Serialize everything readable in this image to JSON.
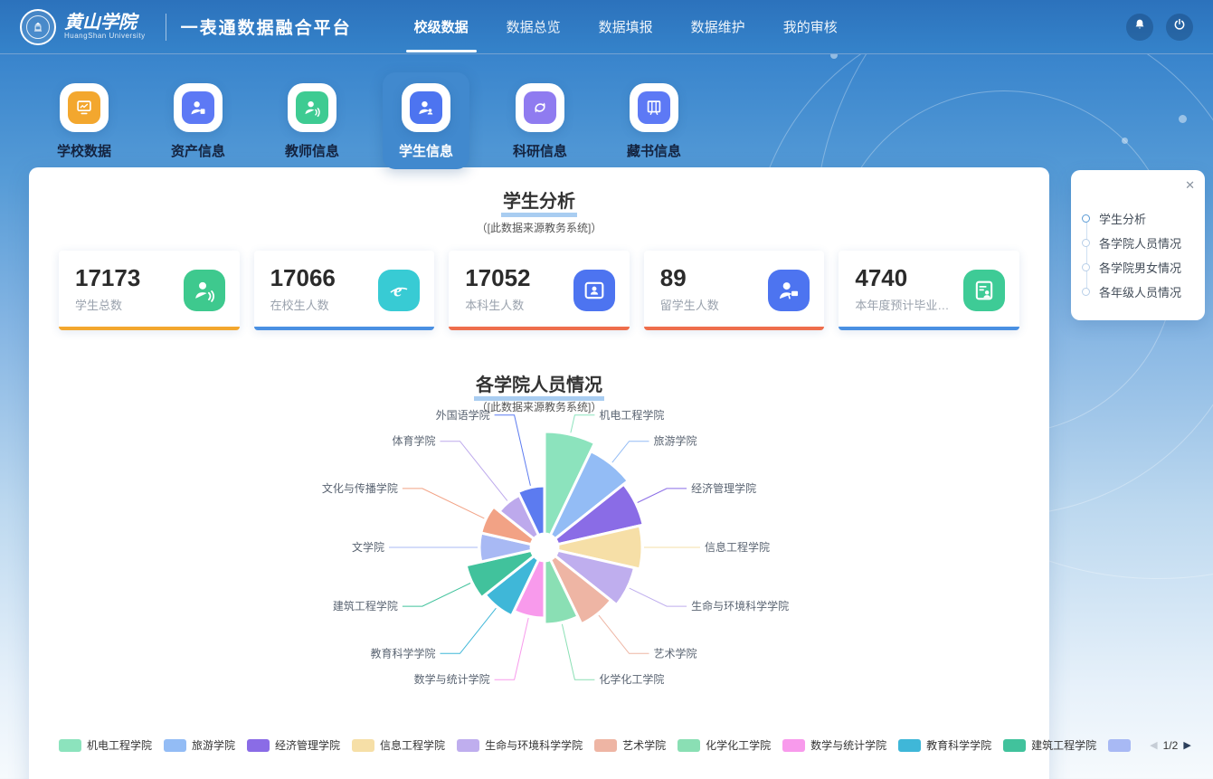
{
  "header": {
    "logo": {
      "name_cn": "黄山学院",
      "name_en": "HuangShan University"
    },
    "app_title": "一表通数据融合平台",
    "nav": [
      {
        "label": "校级数据",
        "active": true
      },
      {
        "label": "数据总览",
        "active": false
      },
      {
        "label": "数据填报",
        "active": false
      },
      {
        "label": "数据维护",
        "active": false
      },
      {
        "label": "我的审核",
        "active": false
      }
    ]
  },
  "category_tabs": [
    {
      "label": "学校数据",
      "icon": "school-data-icon",
      "color": "#f3a72e",
      "active": false
    },
    {
      "label": "资产信息",
      "icon": "asset-info-icon",
      "color": "#5d79f5",
      "active": false
    },
    {
      "label": "教师信息",
      "icon": "teacher-info-icon",
      "color": "#3ecb92",
      "active": false
    },
    {
      "label": "学生信息",
      "icon": "student-info-icon",
      "color": "#4d74f0",
      "active": true
    },
    {
      "label": "科研信息",
      "icon": "research-info-icon",
      "color": "#8f7bf0",
      "active": false
    },
    {
      "label": "藏书信息",
      "icon": "library-info-icon",
      "color": "#5d79f5",
      "active": false
    }
  ],
  "section": {
    "title": "学生分析",
    "subtitle": "（[此数据来源教务系统]）"
  },
  "stats": [
    {
      "value": "17173",
      "label": "学生总数",
      "icon": "person-sync-icon",
      "icon_color": "#3ec98e",
      "bar_color": "#f3a72e"
    },
    {
      "value": "17066",
      "label": "在校生人数",
      "icon": "browser-e-icon",
      "icon_color": "#38cbd4",
      "bar_color": "#4a90e2"
    },
    {
      "value": "17052",
      "label": "本科生人数",
      "icon": "id-card-icon",
      "icon_color": "#4d74f0",
      "bar_color": "#ee6e4c"
    },
    {
      "value": "89",
      "label": "留学生人数",
      "icon": "person-card-icon",
      "icon_color": "#4d74f0",
      "bar_color": "#ee6e4c"
    },
    {
      "value": "4740",
      "label": "本年度预计毕业…",
      "icon": "doc-person-icon",
      "icon_color": "#3ecb96",
      "bar_color": "#4a90e2"
    }
  ],
  "chart_data": {
    "type": "pie",
    "variant": "nightingale-rose",
    "title": "各学院人员情况",
    "subtitle": "（[此数据来源教务系统]）",
    "values_shown": false,
    "equal_angles": true,
    "inner_radius_px": 15,
    "legend_position": "bottom",
    "legend_page": "1/2",
    "categories": [
      "机电工程学院",
      "旅游学院",
      "经济管理学院",
      "信息工程学院",
      "生命与环境科学学院",
      "艺术学院",
      "化学化工学院",
      "数学与统计学院",
      "教育科学学院",
      "建筑工程学院",
      "文学院",
      "文化与传播学院",
      "体育学院",
      "外国语学院"
    ],
    "relative_radius_px": [
      128,
      118,
      112,
      108,
      102,
      94,
      85,
      78,
      84,
      89,
      72,
      72,
      64,
      68
    ],
    "colors": [
      "#8ce3bd",
      "#93bcf5",
      "#8a6ce6",
      "#f6dfa7",
      "#bfaeee",
      "#eeb5a4",
      "#8adfb4",
      "#f89aec",
      "#3fb7d8",
      "#41c29c",
      "#a8b9f4",
      "#f2a285",
      "#bda9ec",
      "#5c7bf0"
    ]
  },
  "legend": {
    "page": "1/2",
    "prev_arrow": "◀",
    "next_arrow": "▶",
    "items": [
      {
        "label": "机电工程学院",
        "color": "#8ce3bd"
      },
      {
        "label": "旅游学院",
        "color": "#93bcf5"
      },
      {
        "label": "经济管理学院",
        "color": "#8a6ce6"
      },
      {
        "label": "信息工程学院",
        "color": "#f6dfa7"
      },
      {
        "label": "生命与环境科学学院",
        "color": "#bfaeee"
      },
      {
        "label": "艺术学院",
        "color": "#eeb5a4"
      },
      {
        "label": "化学化工学院",
        "color": "#8adfb4"
      },
      {
        "label": "数学与统计学院",
        "color": "#f89aec"
      },
      {
        "label": "教育科学学院",
        "color": "#3fb7d8"
      },
      {
        "label": "建筑工程学院",
        "color": "#41c29c"
      },
      {
        "label": "",
        "color": "#a8b9f4"
      }
    ]
  },
  "anchor_panel": {
    "close": "✕",
    "items": [
      {
        "label": "学生分析",
        "active": true
      },
      {
        "label": "各学院人员情况",
        "active": false
      },
      {
        "label": "各学院男女情况",
        "active": false
      },
      {
        "label": "各年级人员情况",
        "active": false
      }
    ]
  }
}
